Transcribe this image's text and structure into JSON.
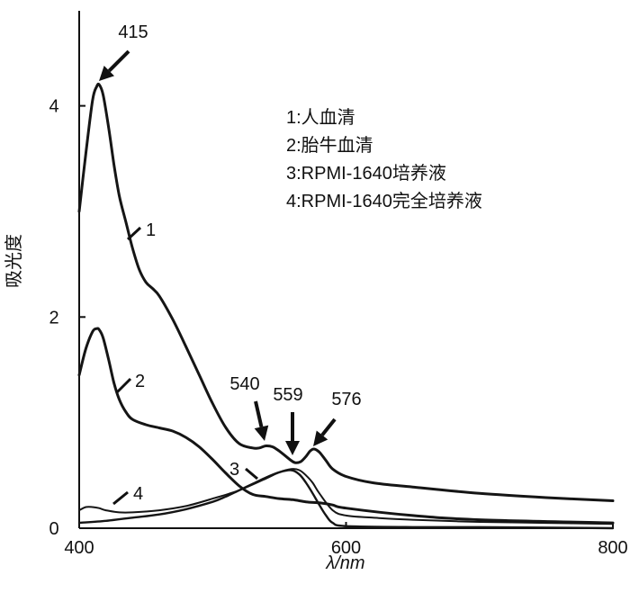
{
  "chart_data": {
    "type": "line",
    "xlabel": "λ/nm",
    "ylabel": "吸光度",
    "xlim": [
      400,
      800
    ],
    "ylim": [
      0,
      4.9
    ],
    "xticks": [
      400,
      600,
      800
    ],
    "yticks": [
      0,
      2,
      4
    ],
    "legend_placement": "top-right",
    "legend": [
      "1:人血清",
      "2:胎牛血清",
      "3:RPMI-1640培养液",
      "4:RPMI-1640完全培养液"
    ],
    "series": [
      {
        "name": "1",
        "x": [
          400,
          405,
          410,
          413,
          415,
          418,
          422,
          426,
          430,
          435,
          440,
          445,
          450,
          455,
          460,
          470,
          480,
          490,
          500,
          510,
          520,
          530,
          535,
          540,
          545,
          550,
          555,
          559,
          562,
          566,
          570,
          573,
          576,
          580,
          585,
          590,
          600,
          620,
          650,
          700,
          750,
          800
        ],
        "y": [
          3.0,
          3.55,
          4.05,
          4.18,
          4.2,
          4.1,
          3.8,
          3.45,
          3.15,
          2.9,
          2.65,
          2.45,
          2.33,
          2.27,
          2.2,
          1.98,
          1.72,
          1.45,
          1.18,
          0.95,
          0.8,
          0.76,
          0.76,
          0.78,
          0.77,
          0.73,
          0.68,
          0.64,
          0.62,
          0.63,
          0.68,
          0.73,
          0.75,
          0.72,
          0.64,
          0.56,
          0.49,
          0.43,
          0.39,
          0.33,
          0.29,
          0.26
        ]
      },
      {
        "name": "2",
        "x": [
          400,
          405,
          410,
          413,
          415,
          418,
          422,
          426,
          430,
          435,
          440,
          450,
          460,
          470,
          480,
          490,
          500,
          510,
          520,
          530,
          540,
          550,
          560,
          570,
          580,
          590,
          600,
          650,
          700,
          800
        ],
        "y": [
          1.45,
          1.7,
          1.86,
          1.89,
          1.88,
          1.8,
          1.6,
          1.38,
          1.22,
          1.1,
          1.03,
          0.98,
          0.95,
          0.92,
          0.86,
          0.77,
          0.65,
          0.52,
          0.4,
          0.32,
          0.3,
          0.28,
          0.27,
          0.25,
          0.24,
          0.22,
          0.19,
          0.12,
          0.08,
          0.05
        ]
      },
      {
        "name": "3",
        "x": [
          400,
          420,
          440,
          460,
          480,
          500,
          510,
          520,
          530,
          540,
          550,
          559,
          565,
          570,
          575,
          580,
          585,
          590,
          600,
          650,
          700,
          800
        ],
        "y": [
          0.05,
          0.07,
          0.1,
          0.13,
          0.18,
          0.25,
          0.3,
          0.36,
          0.42,
          0.48,
          0.53,
          0.55,
          0.51,
          0.43,
          0.33,
          0.22,
          0.12,
          0.05,
          0.02,
          0.01,
          0.01,
          0.0
        ]
      },
      {
        "name": "4",
        "x": [
          400,
          405,
          410,
          415,
          420,
          430,
          440,
          460,
          480,
          500,
          520,
          540,
          550,
          559,
          565,
          570,
          575,
          580,
          590,
          600,
          620,
          650,
          700,
          750,
          800
        ],
        "y": [
          0.17,
          0.2,
          0.2,
          0.19,
          0.17,
          0.15,
          0.15,
          0.17,
          0.21,
          0.28,
          0.36,
          0.47,
          0.53,
          0.56,
          0.55,
          0.5,
          0.43,
          0.33,
          0.17,
          0.12,
          0.1,
          0.08,
          0.06,
          0.05,
          0.04
        ]
      }
    ],
    "annotations": [
      {
        "text": "415",
        "x": 415
      },
      {
        "text": "540",
        "x": 540
      },
      {
        "text": "559",
        "x": 559
      },
      {
        "text": "576",
        "x": 576
      }
    ],
    "curve_labels": [
      "1",
      "2",
      "3",
      "4"
    ]
  }
}
